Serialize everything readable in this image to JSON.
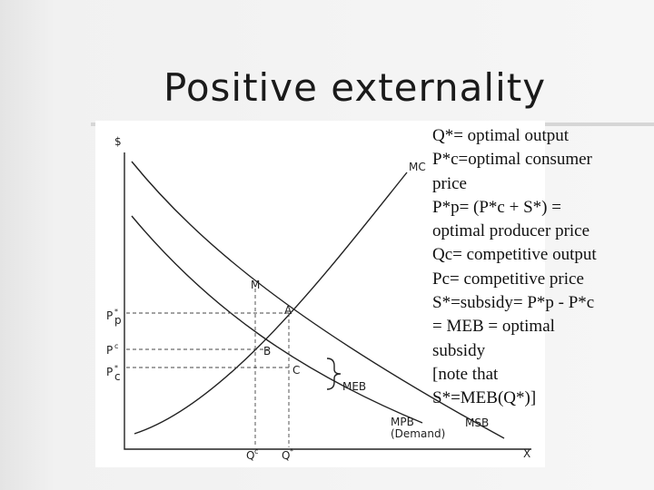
{
  "title": "Positive externality",
  "diagram": {
    "axis_y": "$",
    "axis_x": "X",
    "curves": {
      "mc": "MC",
      "msb": "MSB",
      "mpb": "MPB",
      "demand": "(Demand)",
      "meb": "MEB"
    },
    "points": {
      "m": "M",
      "a": "A",
      "b": "B",
      "c": "C"
    },
    "price_labels": [
      {
        "base": "P",
        "sup": "*",
        "sub": "p"
      },
      {
        "base": "P",
        "sup": "c"
      },
      {
        "base": "P",
        "sup": "*",
        "sub": "c"
      }
    ],
    "quantity_labels": [
      {
        "base": "Q",
        "sup": "c"
      },
      {
        "base": "Q",
        "sup": "*"
      }
    ]
  },
  "notes": [
    "Q*= optimal output",
    "P*c=optimal consumer",
    "price",
    "P*p= (P*c + S*) =",
    "optimal producer price",
    "Qc= competitive output",
    "Pc= competitive price",
    "S*=subsidy= P*p - P*c",
    "= MEB = optimal",
    "subsidy",
    "[note that",
    "S*=MEB(Q*)]"
  ]
}
